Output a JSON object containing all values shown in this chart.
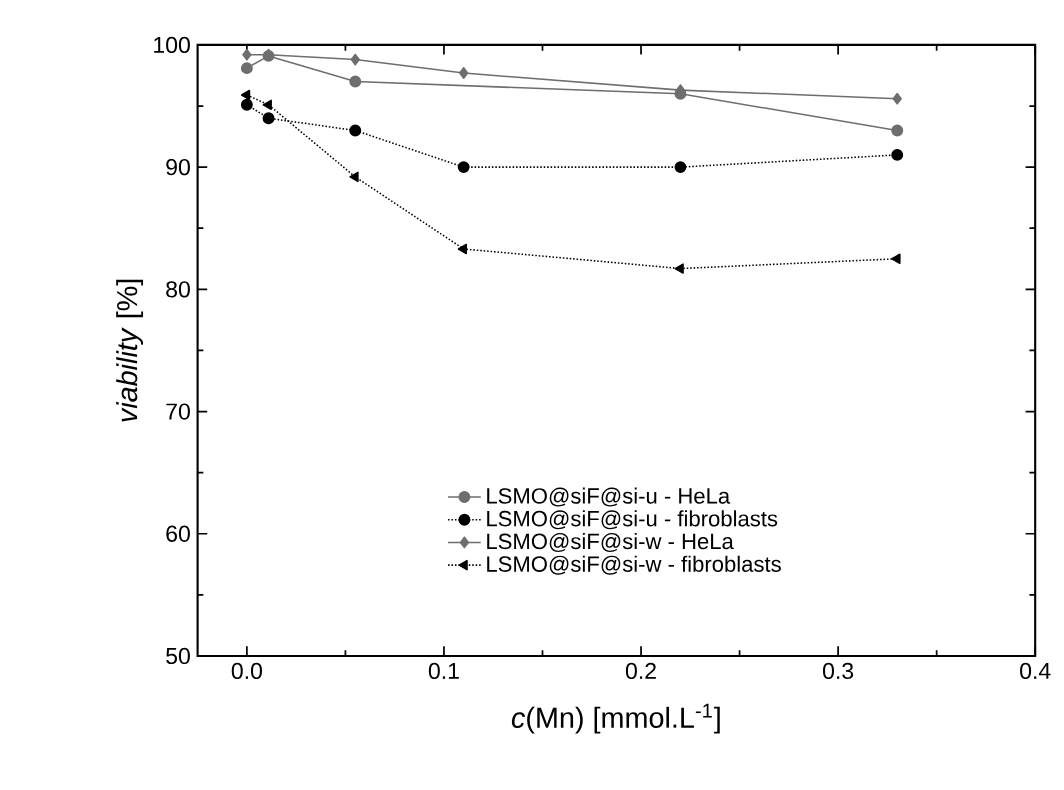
{
  "chart_data": {
    "type": "line",
    "xlabel": "*c*(Mn) [mmol.L$^{-1}$]",
    "ylabel": "*viability* [%]",
    "xlim": [
      -0.025,
      0.4
    ],
    "ylim": [
      50,
      100
    ],
    "xticks": [
      {
        "value": 0,
        "label": "0.0"
      },
      0.1,
      0.2,
      0.3,
      0.4
    ],
    "yticks": [
      50,
      60,
      70,
      80,
      90,
      100
    ],
    "legend": "bottom",
    "grid": false,
    "series": [
      {
        "name": "LSMO@siF@si-u - HeLa",
        "color": "#6e6e6e",
        "marker": "circle",
        "line_style": "solid",
        "x": [
          0,
          0.011,
          0.055,
          0.22,
          0.33
        ],
        "values": [
          98.1,
          99.1,
          97.0,
          96.0,
          93.0
        ]
      },
      {
        "name": "LSMO@siF@si-u - fibroblasts",
        "color": "#000000",
        "marker": "circle",
        "line_style": "dotted",
        "x": [
          0,
          0.011,
          0.055,
          0.11,
          0.22,
          0.33
        ],
        "values": [
          95.1,
          94.0,
          93.0,
          90.0,
          90.0,
          91.0
        ]
      },
      {
        "name": "LSMO@siF@si-w - HeLa",
        "color": "#6e6e6e",
        "marker": "diamond",
        "line_style": "solid",
        "x": [
          0,
          0.011,
          0.055,
          0.11,
          0.22,
          0.33
        ],
        "values": [
          99.2,
          99.2,
          98.8,
          97.7,
          96.3,
          95.6
        ]
      },
      {
        "name": "LSMO@siF@si-w - fibroblasts",
        "color": "#000000",
        "marker": "triangle",
        "line_style": "dotted",
        "x": [
          0,
          0.011,
          0.055,
          0.11,
          0.22,
          0.33
        ],
        "values": [
          95.9,
          95.1,
          89.2,
          83.3,
          81.7,
          82.5
        ]
      }
    ]
  }
}
